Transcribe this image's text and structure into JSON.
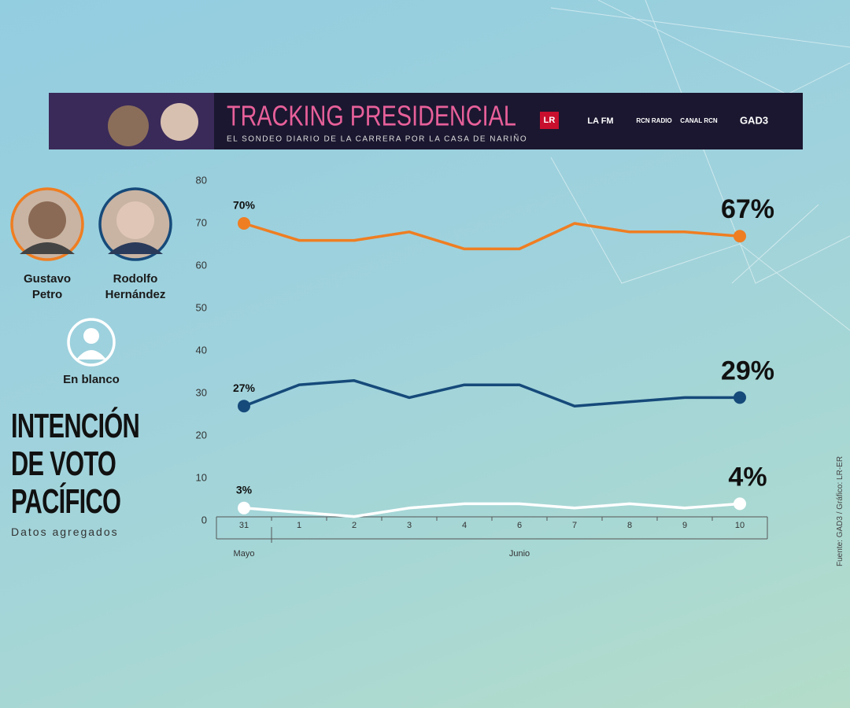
{
  "header": {
    "title": "TRACKING PRESIDENCIAL",
    "subtitle": "EL SONDEO DIARIO DE LA CARRERA POR LA CASA DE NARIÑO",
    "logos": [
      "LR",
      "LA FM",
      "RCN RADIO",
      "CANAL RCN",
      "GAD3"
    ]
  },
  "chart_data": {
    "type": "line",
    "title": "INTENCIÓN DE VOTO PACÍFICO",
    "subtitle": "Datos agregados",
    "source": "Fuente: GAD3 / Gráfico: LR-ER",
    "categories": [
      "31",
      "1",
      "2",
      "3",
      "4",
      "6",
      "7",
      "8",
      "9",
      "10"
    ],
    "x_groups": [
      {
        "label": "Mayo",
        "count": 1
      },
      {
        "label": "Junio",
        "count": 9
      }
    ],
    "ylim": [
      0,
      80
    ],
    "yticks": [
      0,
      10,
      20,
      30,
      40,
      50,
      60,
      70,
      80
    ],
    "grid": false,
    "series": [
      {
        "name": "Gustavo Petro",
        "color": "#ef7d22",
        "values": [
          70,
          66,
          66,
          68,
          64,
          64,
          70,
          68,
          68,
          67
        ],
        "value_labels": [
          "70%",
          null,
          null,
          null,
          null,
          null,
          null,
          null,
          null,
          "67%"
        ]
      },
      {
        "name": "Rodolfo Hernández",
        "color": "#154a7a",
        "values": [
          27,
          32,
          33,
          29,
          32,
          32,
          27,
          28,
          29,
          29
        ],
        "value_labels": [
          "27%",
          null,
          null,
          null,
          null,
          null,
          null,
          null,
          null,
          "29%"
        ]
      },
      {
        "name": "En blanco",
        "color": "#ffffff",
        "values": [
          3,
          2,
          1,
          3,
          4,
          4,
          3,
          4,
          3,
          4
        ],
        "value_labels": [
          "3%",
          null,
          null,
          null,
          null,
          null,
          null,
          null,
          null,
          "4%"
        ]
      }
    ]
  }
}
